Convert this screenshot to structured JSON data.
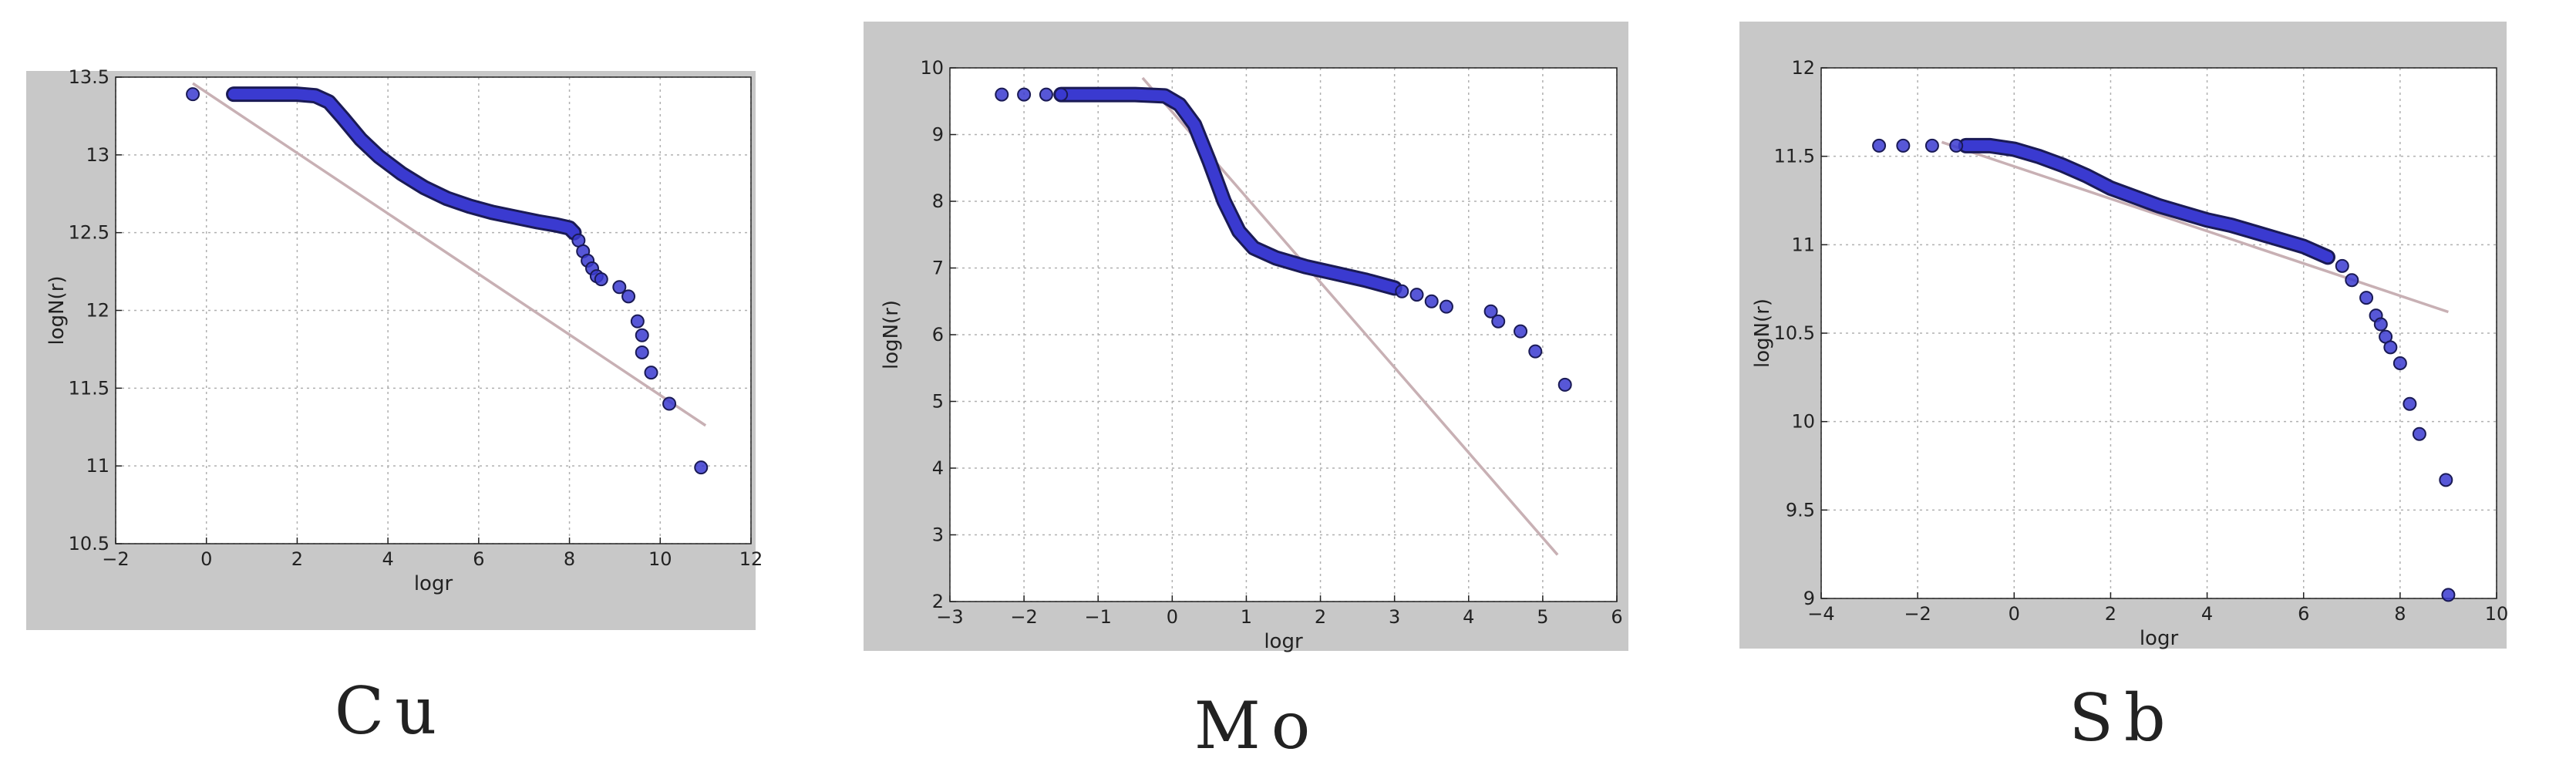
{
  "colors": {
    "panel_bg": "#c8c8c8",
    "plot_bg": "#ffffff",
    "grid": "#b0b0b0",
    "marker_fill": "#3a3ad0",
    "marker_edge": "#1a1a55",
    "fit_line": "#c8b0b4"
  },
  "chart_data": [
    {
      "type": "scatter",
      "caption": "Cu",
      "xlabel": "logr",
      "ylabel": "logN(r)",
      "xlim": [
        -2,
        12
      ],
      "ylim": [
        10.5,
        13.5
      ],
      "xticks": [
        -2,
        0,
        2,
        4,
        6,
        8,
        10,
        12
      ],
      "yticks": [
        10.5,
        11,
        11.5,
        12,
        12.5,
        13,
        13.5
      ],
      "xtick_labels": [
        "−2",
        "0",
        "2",
        "4",
        "6",
        "8",
        "10",
        "12"
      ],
      "ytick_labels": [
        "10.5",
        "11",
        "11.5",
        "12",
        "12.5",
        "13",
        "13.5"
      ],
      "grid": true,
      "fit_line": {
        "x": [
          -0.3,
          11.0
        ],
        "y": [
          13.46,
          11.26
        ]
      },
      "curve": {
        "x": [
          0.6,
          1.2,
          2.0,
          2.4,
          2.7,
          3.0,
          3.4,
          3.8,
          4.3,
          4.8,
          5.3,
          5.8,
          6.3,
          6.8,
          7.3,
          7.7,
          8.0,
          8.1
        ],
        "y": [
          13.39,
          13.39,
          13.39,
          13.38,
          13.34,
          13.24,
          13.1,
          12.99,
          12.88,
          12.79,
          12.72,
          12.67,
          12.63,
          12.6,
          12.57,
          12.55,
          12.53,
          12.5
        ]
      },
      "points": {
        "x": [
          -0.3,
          8.2,
          8.3,
          8.4,
          8.5,
          8.6,
          8.7,
          9.1,
          9.3,
          9.5,
          9.6,
          9.6,
          9.8,
          10.2,
          10.9
        ],
        "y": [
          13.39,
          12.45,
          12.38,
          12.32,
          12.27,
          12.22,
          12.2,
          12.15,
          12.09,
          11.93,
          11.84,
          11.73,
          11.6,
          11.4,
          10.99
        ]
      }
    },
    {
      "type": "scatter",
      "caption": "Mo",
      "xlabel": "logr",
      "ylabel": "logN(r)",
      "xlim": [
        -3,
        6
      ],
      "ylim": [
        2,
        10
      ],
      "xticks": [
        -3,
        -2,
        -1,
        0,
        1,
        2,
        3,
        4,
        5,
        6
      ],
      "yticks": [
        2,
        3,
        4,
        5,
        6,
        7,
        8,
        9,
        10
      ],
      "xtick_labels": [
        "−3",
        "−2",
        "−1",
        "0",
        "1",
        "2",
        "3",
        "4",
        "5",
        "6"
      ],
      "ytick_labels": [
        "2",
        "3",
        "4",
        "5",
        "6",
        "7",
        "8",
        "9",
        "10"
      ],
      "grid": true,
      "fit_line": {
        "x": [
          -0.4,
          5.2
        ],
        "y": [
          9.85,
          2.7
        ]
      },
      "curve": {
        "x": [
          -1.5,
          -1.0,
          -0.5,
          -0.1,
          0.1,
          0.3,
          0.5,
          0.7,
          0.9,
          1.1,
          1.4,
          1.8,
          2.2,
          2.6,
          3.0
        ],
        "y": [
          9.6,
          9.6,
          9.6,
          9.58,
          9.45,
          9.15,
          8.6,
          8.0,
          7.55,
          7.3,
          7.15,
          7.02,
          6.92,
          6.82,
          6.7
        ]
      },
      "points": {
        "x": [
          -2.3,
          -2.0,
          -1.7,
          -1.5,
          3.1,
          3.3,
          3.5,
          3.7,
          4.3,
          4.4,
          4.7,
          4.9,
          5.3
        ],
        "y": [
          9.6,
          9.6,
          9.6,
          9.6,
          6.65,
          6.6,
          6.5,
          6.42,
          6.35,
          6.2,
          6.05,
          5.75,
          5.25
        ]
      }
    },
    {
      "type": "scatter",
      "caption": "Sb",
      "xlabel": "logr",
      "ylabel": "logN(r)",
      "xlim": [
        -4,
        10
      ],
      "ylim": [
        9,
        12
      ],
      "xticks": [
        -4,
        -2,
        0,
        2,
        4,
        6,
        8,
        10
      ],
      "yticks": [
        9,
        9.5,
        10,
        10.5,
        11,
        11.5,
        12
      ],
      "xtick_labels": [
        "−4",
        "−2",
        "0",
        "2",
        "4",
        "6",
        "8",
        "10"
      ],
      "ytick_labels": [
        "9",
        "9.5",
        "10",
        "10.5",
        "11",
        "11.5",
        "12"
      ],
      "grid": true,
      "fit_line": {
        "x": [
          -1.5,
          9.0
        ],
        "y": [
          11.58,
          10.62
        ]
      },
      "curve": {
        "x": [
          -1.0,
          -0.5,
          0.0,
          0.5,
          1.0,
          1.5,
          2.0,
          2.5,
          3.0,
          3.5,
          4.0,
          4.5,
          5.0,
          5.5,
          6.0,
          6.5
        ],
        "y": [
          11.56,
          11.56,
          11.54,
          11.5,
          11.45,
          11.39,
          11.32,
          11.27,
          11.22,
          11.18,
          11.14,
          11.11,
          11.07,
          11.03,
          10.99,
          10.93
        ]
      },
      "points": {
        "x": [
          -2.8,
          -2.3,
          -1.7,
          -1.2,
          6.8,
          7.0,
          7.3,
          7.5,
          7.6,
          7.7,
          7.8,
          8.0,
          8.2,
          8.4,
          8.95,
          9.0
        ],
        "y": [
          11.56,
          11.56,
          11.56,
          11.56,
          10.88,
          10.8,
          10.7,
          10.6,
          10.55,
          10.48,
          10.42,
          10.33,
          10.1,
          9.93,
          9.67,
          9.02
        ]
      }
    }
  ]
}
